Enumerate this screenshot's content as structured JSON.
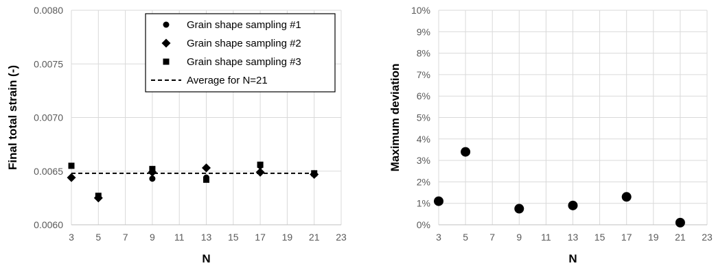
{
  "chart_data": [
    {
      "type": "scatter",
      "title": "",
      "xlabel": "N",
      "ylabel": "Final total strain (-)",
      "xlim": [
        3,
        23
      ],
      "ylim": [
        0.006,
        0.008
      ],
      "x_ticks": [
        3,
        5,
        7,
        9,
        11,
        13,
        15,
        17,
        19,
        21,
        23
      ],
      "y_ticks": [
        0.006,
        0.0065,
        0.007,
        0.0075,
        0.008
      ],
      "x_tick_labels": [
        "3",
        "5",
        "7",
        "9",
        "11",
        "13",
        "15",
        "17",
        "19",
        "21",
        "23"
      ],
      "y_tick_labels": [
        "0.0060",
        "0.0065",
        "0.0070",
        "0.0075",
        "0.0080"
      ],
      "grid": true,
      "legend_position": "top-right",
      "series": [
        {
          "name": "Grain shape sampling #1",
          "marker": "circle",
          "color": "#000000",
          "x": [
            3,
            5,
            9,
            13,
            17,
            21
          ],
          "y": [
            0.00644,
            0.00626,
            0.00643,
            0.00644,
            0.00655,
            0.00648
          ]
        },
        {
          "name": "Grain shape sampling #2",
          "marker": "diamond",
          "color": "#000000",
          "x": [
            3,
            5,
            9,
            13,
            17,
            21
          ],
          "y": [
            0.00644,
            0.00625,
            0.00649,
            0.00653,
            0.00649,
            0.00647
          ]
        },
        {
          "name": "Grain shape sampling #3",
          "marker": "square",
          "color": "#000000",
          "x": [
            3,
            5,
            9,
            13,
            17,
            21
          ],
          "y": [
            0.00655,
            0.00627,
            0.00652,
            0.00642,
            0.00656,
            0.00648
          ]
        },
        {
          "name": "Average for N=21",
          "marker": "dashed-line",
          "color": "#000000",
          "x": [
            3,
            21
          ],
          "y": [
            0.00648,
            0.00648
          ]
        }
      ]
    },
    {
      "type": "scatter",
      "title": "",
      "xlabel": "N",
      "ylabel": "Maximum deviation",
      "xlim": [
        3,
        23
      ],
      "ylim": [
        0,
        10
      ],
      "y_unit": "%",
      "x_ticks": [
        3,
        5,
        7,
        9,
        11,
        13,
        15,
        17,
        19,
        21,
        23
      ],
      "y_ticks": [
        0,
        1,
        2,
        3,
        4,
        5,
        6,
        7,
        8,
        9,
        10
      ],
      "x_tick_labels": [
        "3",
        "5",
        "7",
        "9",
        "11",
        "13",
        "15",
        "17",
        "19",
        "21",
        "23"
      ],
      "y_tick_labels": [
        "0%",
        "1%",
        "2%",
        "3%",
        "4%",
        "5%",
        "6%",
        "7%",
        "8%",
        "9%",
        "10%"
      ],
      "grid": true,
      "legend_position": "none",
      "series": [
        {
          "marker": "circle",
          "color": "#000000",
          "x": [
            3,
            5,
            9,
            13,
            17,
            21
          ],
          "y": [
            1.1,
            3.4,
            0.75,
            0.9,
            1.3,
            0.1
          ]
        }
      ]
    }
  ]
}
